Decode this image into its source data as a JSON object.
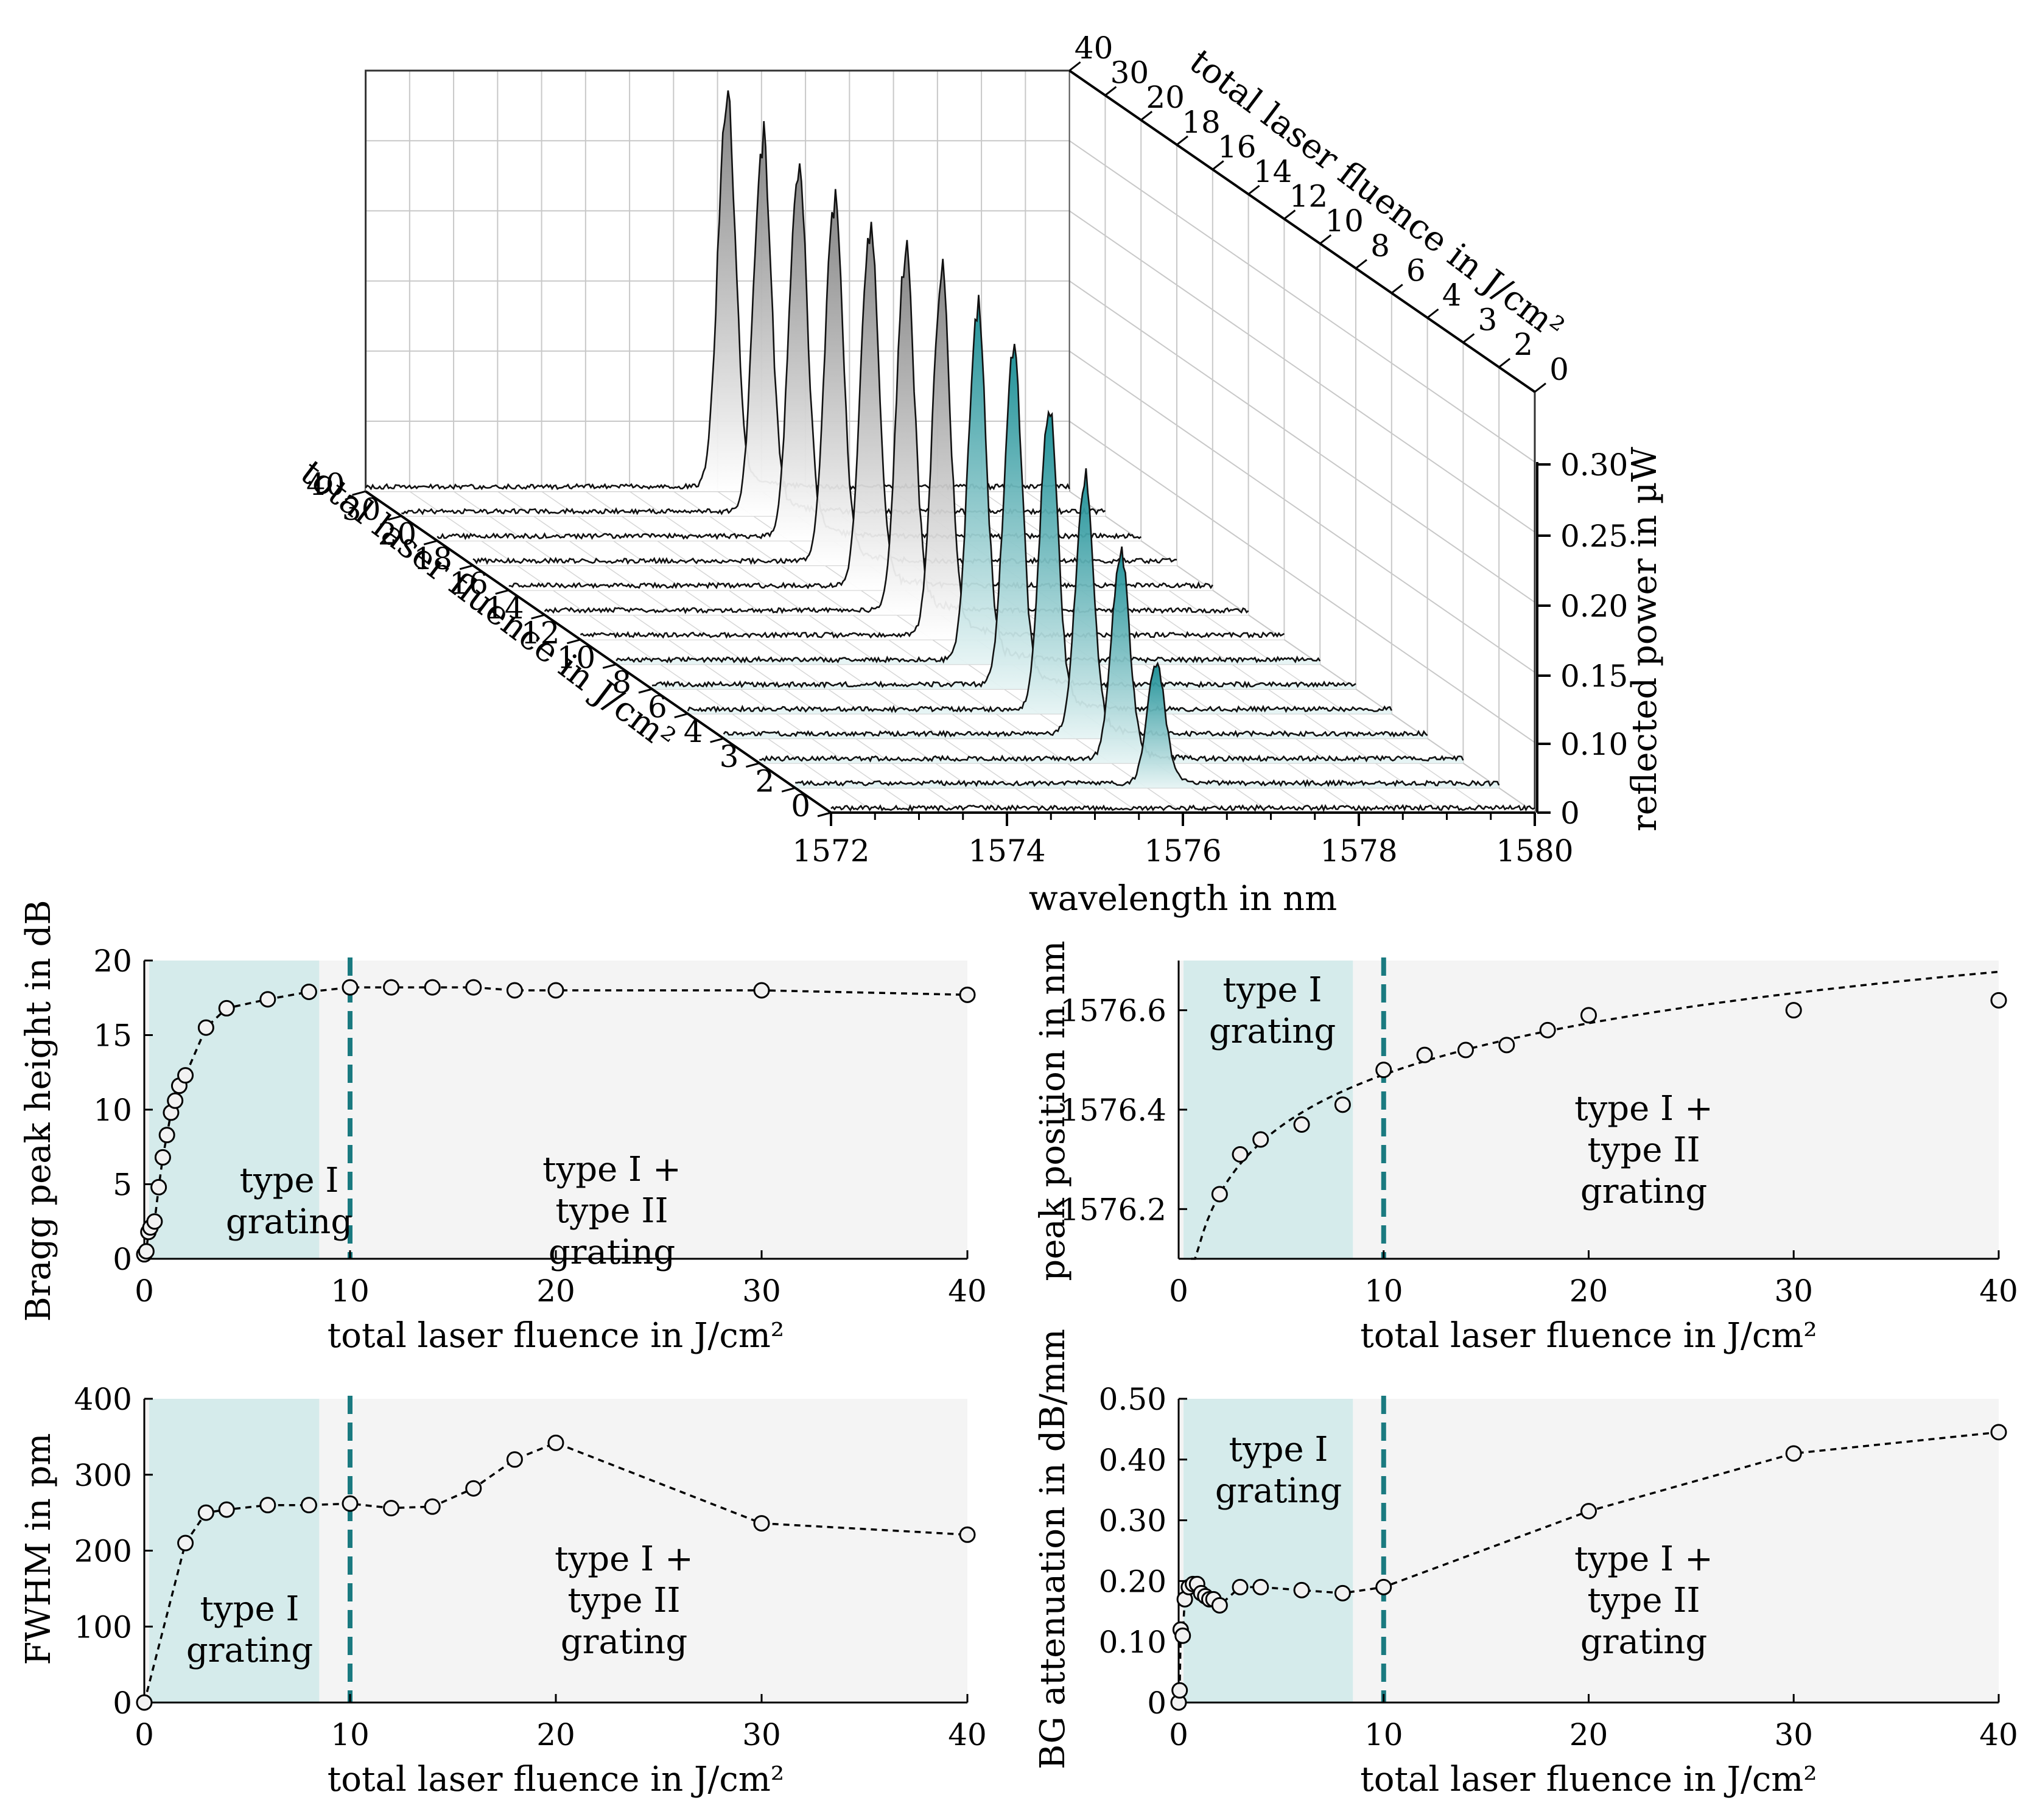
{
  "colors": {
    "teal": "#1b8e95",
    "teal_dark": "#1a7a80",
    "teal_region": "#d5ebeb",
    "grey_region": "#f4f4f4",
    "spectrum_grey": "#8a8a8a",
    "grid": "#c8c8c8"
  },
  "waterfall": {
    "z_label": "reflected power in µW",
    "x_label": "wavelength in nm",
    "y_label": "total laser fluence in J/cm²",
    "x_ticks": [
      "1572",
      "1574",
      "1576",
      "1578",
      "1580"
    ],
    "z_ticks": [
      "0",
      "0.10",
      "0.15",
      "0.20",
      "0.25",
      "0.30"
    ],
    "fluence_ticks": [
      "0",
      "2",
      "3",
      "4",
      "6",
      "8",
      "10",
      "12",
      "14",
      "16",
      "18",
      "20",
      "30",
      "40"
    ],
    "peak_wavelength_nm": 1576.1,
    "peak_power_uW": [
      0.0,
      0.1,
      0.17,
      0.21,
      0.25,
      0.28,
      0.29,
      0.3,
      0.3,
      0.3,
      0.3,
      0.31,
      0.31,
      0.32
    ],
    "teal_traces_count": 6
  },
  "chart_data": [
    {
      "type": "scatter",
      "ylabel": "Bragg peak height in dB",
      "xlabel": "total laser fluence in J/cm²",
      "xlim": [
        0,
        40
      ],
      "ylim": [
        0,
        20
      ],
      "xticks": [
        "0",
        "10",
        "20",
        "30",
        "40"
      ],
      "yticks": [
        "0",
        "5",
        "10",
        "15",
        "20"
      ],
      "typeI_region": [
        0,
        8.5
      ],
      "threshold_x": 10,
      "region_text_1": [
        "type I",
        "grating"
      ],
      "region_text_2": [
        "type I +",
        "type II",
        "grating"
      ],
      "x": [
        0,
        0.1,
        0.2,
        0.3,
        0.5,
        0.7,
        0.9,
        1.1,
        1.3,
        1.5,
        1.7,
        2,
        3,
        4,
        6,
        8,
        10,
        12,
        14,
        16,
        18,
        20,
        30,
        40
      ],
      "y": [
        0.3,
        0.5,
        1.8,
        2.1,
        2.5,
        4.8,
        6.8,
        8.3,
        9.8,
        10.6,
        11.6,
        12.3,
        15.5,
        16.8,
        17.4,
        17.9,
        18.2,
        18.2,
        18.2,
        18.2,
        18.0,
        18.0,
        18.0,
        17.7
      ]
    },
    {
      "type": "scatter",
      "ylabel": "peak position in nm",
      "xlabel": "total laser fluence in J/cm²",
      "xlim": [
        0,
        40
      ],
      "ylim": [
        1576.1,
        1576.7
      ],
      "xticks": [
        "0",
        "10",
        "20",
        "30",
        "40"
      ],
      "yticks": [
        "1576.2",
        "1576.4",
        "1576.6"
      ],
      "typeI_region": [
        0,
        8.5
      ],
      "threshold_x": 10,
      "region_text_1": [
        "type I",
        "grating"
      ],
      "region_text_2": [
        "type I +",
        "type II",
        "grating"
      ],
      "x": [
        2,
        3,
        4,
        6,
        8,
        10,
        12,
        14,
        16,
        18,
        20,
        30,
        40
      ],
      "y": [
        1576.23,
        1576.31,
        1576.34,
        1576.37,
        1576.41,
        1576.48,
        1576.51,
        1576.52,
        1576.53,
        1576.56,
        1576.59,
        1576.6,
        1576.62
      ]
    },
    {
      "type": "line",
      "ylabel": "FWHM in pm",
      "xlabel": "total laser fluence in J/cm²",
      "xlim": [
        0,
        40
      ],
      "ylim": [
        0,
        400
      ],
      "xticks": [
        "0",
        "10",
        "20",
        "30",
        "40"
      ],
      "yticks": [
        "0",
        "100",
        "200",
        "300",
        "400"
      ],
      "typeI_region": [
        0,
        8.5
      ],
      "threshold_x": 10,
      "region_text_1": [
        "type I",
        "grating"
      ],
      "region_text_2": [
        "type I +",
        "type II",
        "grating"
      ],
      "x": [
        0,
        2,
        3,
        4,
        6,
        8,
        10,
        12,
        14,
        16,
        18,
        20,
        30,
        40
      ],
      "y": [
        0,
        210,
        250,
        254,
        260,
        260,
        262,
        256,
        258,
        282,
        320,
        342,
        236,
        221
      ]
    },
    {
      "type": "line",
      "ylabel": "BG attenuation in dB/mm",
      "xlabel": "total laser fluence in J/cm²",
      "xlim": [
        0,
        40
      ],
      "ylim": [
        0,
        0.5
      ],
      "xticks": [
        "0",
        "10",
        "20",
        "30",
        "40"
      ],
      "yticks": [
        "0",
        "0.10",
        "0.20",
        "0.30",
        "0.40",
        "0.50"
      ],
      "typeI_region": [
        0,
        8.5
      ],
      "threshold_x": 10,
      "region_text_1": [
        "type I",
        "grating"
      ],
      "region_text_2": [
        "type I +",
        "type II",
        "grating"
      ],
      "x": [
        0,
        0.05,
        0.1,
        0.2,
        0.3,
        0.5,
        0.7,
        0.9,
        1.1,
        1.3,
        1.5,
        1.7,
        2,
        3,
        4,
        6,
        8,
        10,
        20,
        30,
        40
      ],
      "y": [
        0.0,
        0.02,
        0.12,
        0.11,
        0.17,
        0.19,
        0.195,
        0.195,
        0.18,
        0.175,
        0.17,
        0.17,
        0.16,
        0.19,
        0.19,
        0.185,
        0.18,
        0.19,
        0.315,
        0.41,
        0.445
      ]
    }
  ]
}
